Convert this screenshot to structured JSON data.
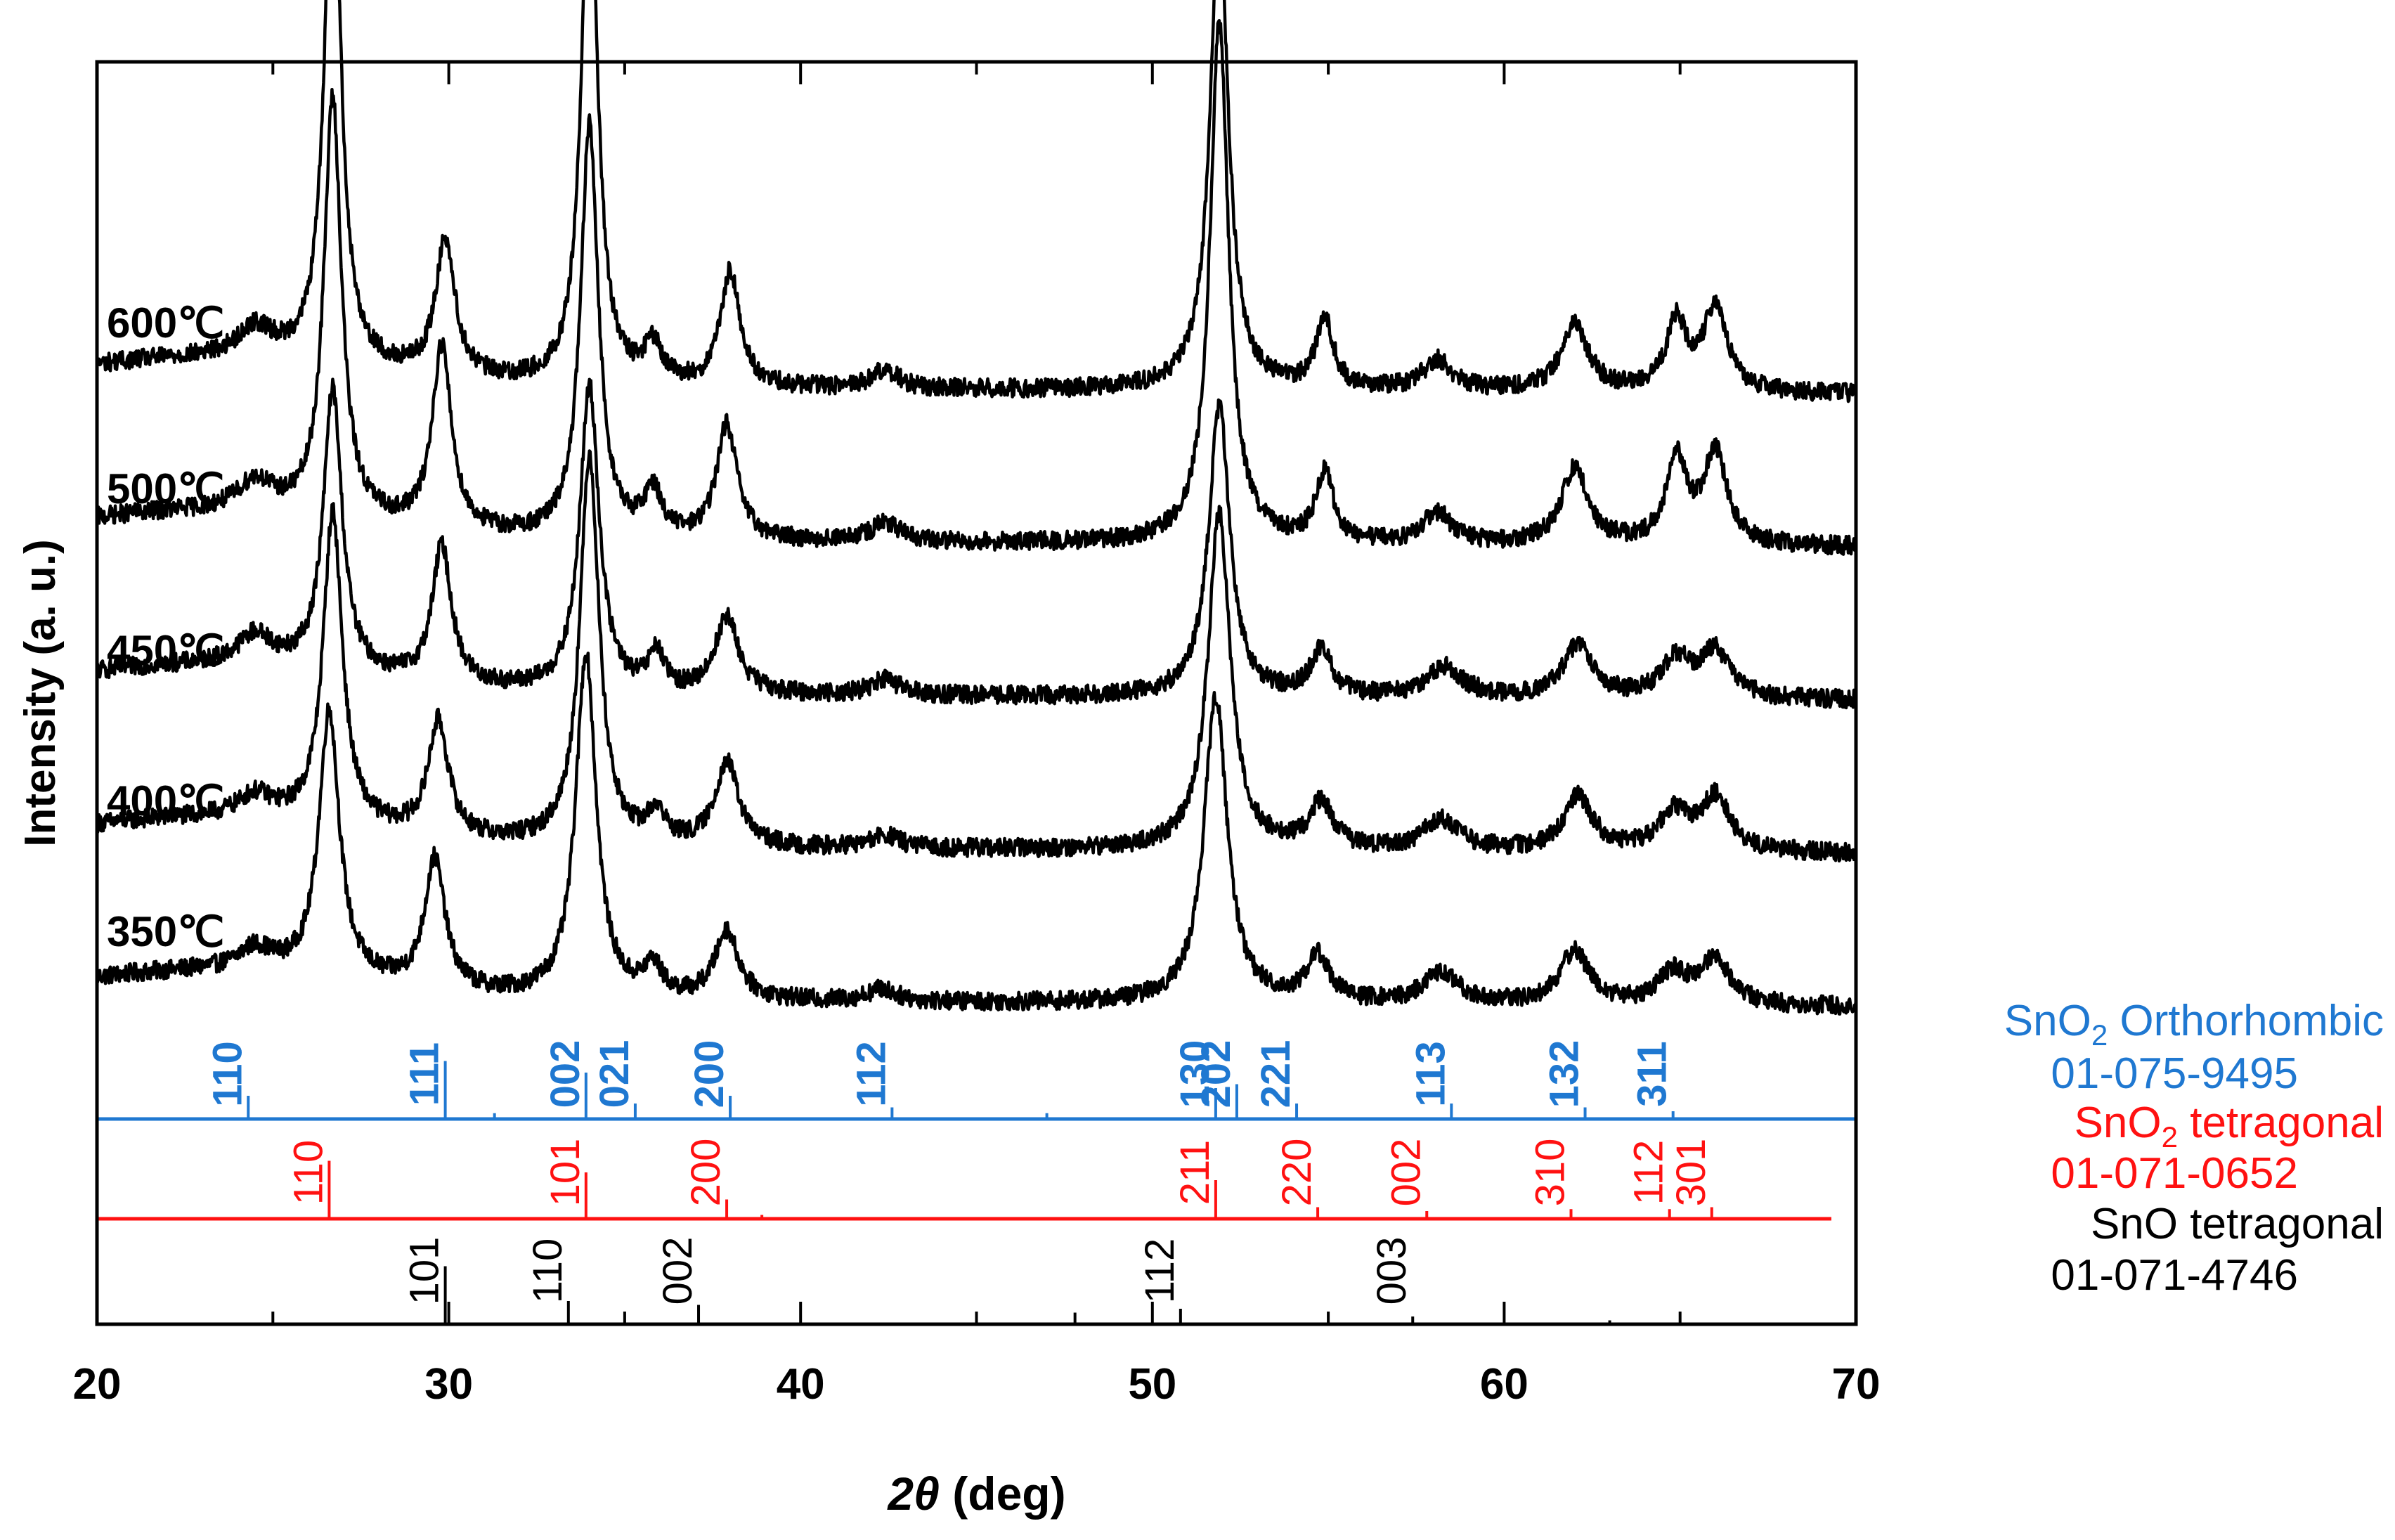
{
  "chart_data": {
    "type": "line",
    "title": "",
    "xlabel_symbol": "2θ",
    "xlabel_unit": " (deg)",
    "ylabel": "Intensity (a. u.)",
    "xlim": [
      20,
      70
    ],
    "x_ticks": [
      20,
      30,
      40,
      50,
      60,
      70
    ],
    "x_tick_labels": [
      "20",
      "30",
      "40",
      "50",
      "60",
      "70"
    ],
    "series": [
      {
        "name": "350℃",
        "label": "350℃",
        "baseline": 0.0,
        "noise": 0.12,
        "peaks": [
          [
            24.5,
            0.15,
            0.6
          ],
          [
            26.6,
            1.75,
            0.35
          ],
          [
            29.6,
            0.85,
            0.35
          ],
          [
            33.9,
            2.25,
            0.35
          ],
          [
            35.8,
            0.2,
            0.3
          ],
          [
            37.9,
            0.45,
            0.4
          ],
          [
            42.3,
            0.08,
            0.5
          ],
          [
            51.8,
            2.0,
            0.4
          ],
          [
            54.7,
            0.3,
            0.4
          ],
          [
            58.2,
            0.2,
            0.6
          ],
          [
            62.0,
            0.35,
            0.5
          ],
          [
            64.8,
            0.2,
            0.5
          ],
          [
            66.0,
            0.3,
            0.5
          ]
        ]
      },
      {
        "name": "400℃",
        "label": "400℃",
        "baseline": 1.0,
        "noise": 0.12,
        "peaks": [
          [
            24.5,
            0.15,
            0.6
          ],
          [
            26.7,
            2.05,
            0.33
          ],
          [
            29.7,
            0.75,
            0.35
          ],
          [
            34.0,
            2.55,
            0.33
          ],
          [
            35.9,
            0.2,
            0.3
          ],
          [
            37.9,
            0.55,
            0.4
          ],
          [
            42.4,
            0.08,
            0.5
          ],
          [
            51.9,
            2.2,
            0.38
          ],
          [
            54.8,
            0.3,
            0.4
          ],
          [
            58.2,
            0.2,
            0.6
          ],
          [
            62.1,
            0.35,
            0.5
          ],
          [
            64.8,
            0.25,
            0.5
          ],
          [
            66.0,
            0.35,
            0.5
          ]
        ]
      },
      {
        "name": "450℃",
        "label": "450℃",
        "baseline": 2.0,
        "noise": 0.12,
        "peaks": [
          [
            24.5,
            0.2,
            0.6
          ],
          [
            26.7,
            1.85,
            0.32
          ],
          [
            29.8,
            0.9,
            0.33
          ],
          [
            34.0,
            2.0,
            0.33
          ],
          [
            35.9,
            0.25,
            0.25
          ],
          [
            37.9,
            0.5,
            0.4
          ],
          [
            42.4,
            0.1,
            0.5
          ],
          [
            51.9,
            1.9,
            0.36
          ],
          [
            54.8,
            0.3,
            0.35
          ],
          [
            58.3,
            0.2,
            0.6
          ],
          [
            62.1,
            0.35,
            0.5
          ],
          [
            64.9,
            0.25,
            0.5
          ],
          [
            66.0,
            0.3,
            0.5
          ]
        ]
      },
      {
        "name": "500℃",
        "label": "500℃",
        "baseline": 3.0,
        "noise": 0.12,
        "peaks": [
          [
            24.5,
            0.2,
            0.6
          ],
          [
            26.7,
            2.75,
            0.3
          ],
          [
            29.8,
            1.2,
            0.33
          ],
          [
            34.0,
            2.7,
            0.3
          ],
          [
            35.8,
            0.3,
            0.3
          ],
          [
            37.9,
            0.75,
            0.35
          ],
          [
            42.4,
            0.12,
            0.5
          ],
          [
            51.9,
            3.4,
            0.32
          ],
          [
            54.9,
            0.45,
            0.3
          ],
          [
            58.1,
            0.2,
            0.5
          ],
          [
            62.0,
            0.5,
            0.45
          ],
          [
            64.9,
            0.55,
            0.35
          ],
          [
            66.0,
            0.6,
            0.4
          ]
        ]
      },
      {
        "name": "600℃",
        "label": "600℃",
        "baseline": 4.0,
        "noise": 0.12,
        "peaks": [
          [
            24.5,
            0.2,
            0.6
          ],
          [
            26.7,
            3.5,
            0.28
          ],
          [
            29.9,
            0.9,
            0.33
          ],
          [
            34.0,
            3.45,
            0.28
          ],
          [
            35.8,
            0.25,
            0.3
          ],
          [
            38.0,
            0.75,
            0.33
          ],
          [
            42.4,
            0.12,
            0.45
          ],
          [
            51.9,
            3.05,
            0.32
          ],
          [
            54.9,
            0.45,
            0.3
          ],
          [
            58.1,
            0.2,
            0.5
          ],
          [
            62.0,
            0.45,
            0.45
          ],
          [
            64.9,
            0.45,
            0.35
          ],
          [
            66.0,
            0.55,
            0.4
          ]
        ]
      }
    ],
    "references": [
      {
        "name": "SnO2 Orthorhombic",
        "card": "01-075-9495",
        "color": "#1f78d1",
        "legend_prefix": "SnO",
        "legend_subscript": "2",
        "legend_suffix": " Orthorhombic",
        "x_end": 70,
        "peaks": [
          {
            "x": 24.3,
            "h": 0.6,
            "hkl": "110"
          },
          {
            "x": 29.9,
            "h": 1.5,
            "hkl": "111"
          },
          {
            "x": 31.3,
            "h": 0.15,
            "hkl": ""
          },
          {
            "x": 33.9,
            "h": 1.2,
            "hkl": "002"
          },
          {
            "x": 35.3,
            "h": 0.4,
            "hkl": "021"
          },
          {
            "x": 38.0,
            "h": 0.6,
            "hkl": "200"
          },
          {
            "x": 42.6,
            "h": 0.3,
            "hkl": "112"
          },
          {
            "x": 47.0,
            "h": 0.15,
            "hkl": ""
          },
          {
            "x": 51.8,
            "h": 0.8,
            "hkl": "130"
          },
          {
            "x": 52.4,
            "h": 0.9,
            "hkl": "202"
          },
          {
            "x": 54.1,
            "h": 0.4,
            "hkl": "221"
          },
          {
            "x": 58.5,
            "h": 0.4,
            "hkl": "113"
          },
          {
            "x": 62.3,
            "h": 0.3,
            "hkl": "132"
          },
          {
            "x": 64.8,
            "h": 0.2,
            "hkl": "311"
          }
        ]
      },
      {
        "name": "SnO2 tetragonal",
        "card": "01-071-0652",
        "color": "#ff1111",
        "legend_prefix": "SnO",
        "legend_subscript": "2",
        "legend_suffix": " tetragonal",
        "x_end": 69.3,
        "peaks": [
          {
            "x": 26.6,
            "h": 1.5,
            "hkl": "110"
          },
          {
            "x": 33.9,
            "h": 1.2,
            "hkl": "101"
          },
          {
            "x": 37.9,
            "h": 0.5,
            "hkl": "200"
          },
          {
            "x": 38.9,
            "h": 0.1,
            "hkl": ""
          },
          {
            "x": 51.8,
            "h": 1.0,
            "hkl": "211"
          },
          {
            "x": 54.7,
            "h": 0.3,
            "hkl": "220"
          },
          {
            "x": 57.8,
            "h": 0.2,
            "hkl": "002"
          },
          {
            "x": 61.9,
            "h": 0.25,
            "hkl": "310"
          },
          {
            "x": 64.7,
            "h": 0.25,
            "hkl": "112"
          },
          {
            "x": 65.9,
            "h": 0.3,
            "hkl": "301"
          }
        ]
      },
      {
        "name": "SnO tetragonal",
        "card": "01-071-4746",
        "color": "#000000",
        "legend_prefix": "SnO tetragonal",
        "legend_subscript": "",
        "legend_suffix": "",
        "x_end": 70,
        "peaks": [
          {
            "x": 29.9,
            "h": 1.5,
            "hkl": "101"
          },
          {
            "x": 33.4,
            "h": 0.6,
            "hkl": "110"
          },
          {
            "x": 37.1,
            "h": 0.5,
            "hkl": "002"
          },
          {
            "x": 47.8,
            "h": 0.3,
            "hkl": ""
          },
          {
            "x": 50.8,
            "h": 0.4,
            "hkl": "112"
          },
          {
            "x": 57.4,
            "h": 0.2,
            "hkl": "003"
          },
          {
            "x": 63.0,
            "h": 0.1,
            "hkl": ""
          }
        ]
      }
    ]
  }
}
